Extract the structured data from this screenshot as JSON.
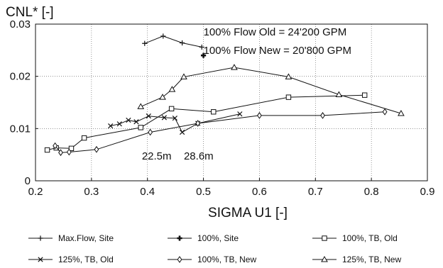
{
  "chart_data": {
    "type": "line",
    "title": "",
    "xlabel": "SIGMA U1 [-]",
    "ylabel": "CNL* [-]",
    "xlim": [
      0.2,
      0.9
    ],
    "ylim": [
      0,
      0.03
    ],
    "xticks": [
      "0.2",
      "0.3",
      "0.4",
      "0.5",
      "0.6",
      "0.7",
      "0.8",
      "0.9"
    ],
    "yticks": [
      "0",
      "0.01",
      "0.02",
      "0.03"
    ],
    "grid": "dotted",
    "legend_position": "bottom",
    "annotations": [
      {
        "text": "100% Flow Old    = 24'200 GPM",
        "x": 0.5,
        "y": 0.0278
      },
      {
        "text": "100% Flow New  = 20'800 GPM",
        "x": 0.5,
        "y": 0.0243
      },
      {
        "text": "22.5m",
        "x": 0.39,
        "y": 0.0041
      },
      {
        "text": "28.6m",
        "x": 0.465,
        "y": 0.0041
      }
    ],
    "series": [
      {
        "name": "Max.Flow, Site",
        "marker": "plus",
        "x": [
          0.395,
          0.428,
          0.462,
          0.497
        ],
        "y": [
          0.0263,
          0.0277,
          0.0264,
          0.0256
        ]
      },
      {
        "name": "100%, Site",
        "marker": "filled-plus",
        "x": [
          0.5
        ],
        "y": [
          0.024
        ]
      },
      {
        "name": "100%, TB, Old",
        "marker": "square",
        "x": [
          0.221,
          0.237,
          0.264,
          0.287,
          0.388,
          0.443,
          0.518,
          0.652,
          0.788
        ],
        "y": [
          0.0059,
          0.0063,
          0.0062,
          0.0082,
          0.0102,
          0.0138,
          0.0132,
          0.016,
          0.0164
        ]
      },
      {
        "name": "125%, TB, Old",
        "marker": "x",
        "x": [
          0.334,
          0.35,
          0.366,
          0.38,
          0.402,
          0.43,
          0.449,
          0.462,
          0.49,
          0.565
        ],
        "y": [
          0.0105,
          0.0109,
          0.0116,
          0.0113,
          0.0124,
          0.0121,
          0.012,
          0.0093,
          0.011,
          0.0128
        ]
      },
      {
        "name": "100%, TB, New",
        "marker": "diamond",
        "x": [
          0.235,
          0.245,
          0.26,
          0.309,
          0.405,
          0.49,
          0.6,
          0.713,
          0.824
        ],
        "y": [
          0.0067,
          0.0054,
          0.0055,
          0.006,
          0.0093,
          0.011,
          0.0125,
          0.0125,
          0.0132
        ]
      },
      {
        "name": "125%, TB, New",
        "marker": "triangle",
        "x": [
          0.388,
          0.427,
          0.444,
          0.465,
          0.555,
          0.652,
          0.742,
          0.853
        ],
        "y": [
          0.0142,
          0.016,
          0.0175,
          0.0199,
          0.0217,
          0.0199,
          0.0165,
          0.0129
        ]
      }
    ]
  }
}
